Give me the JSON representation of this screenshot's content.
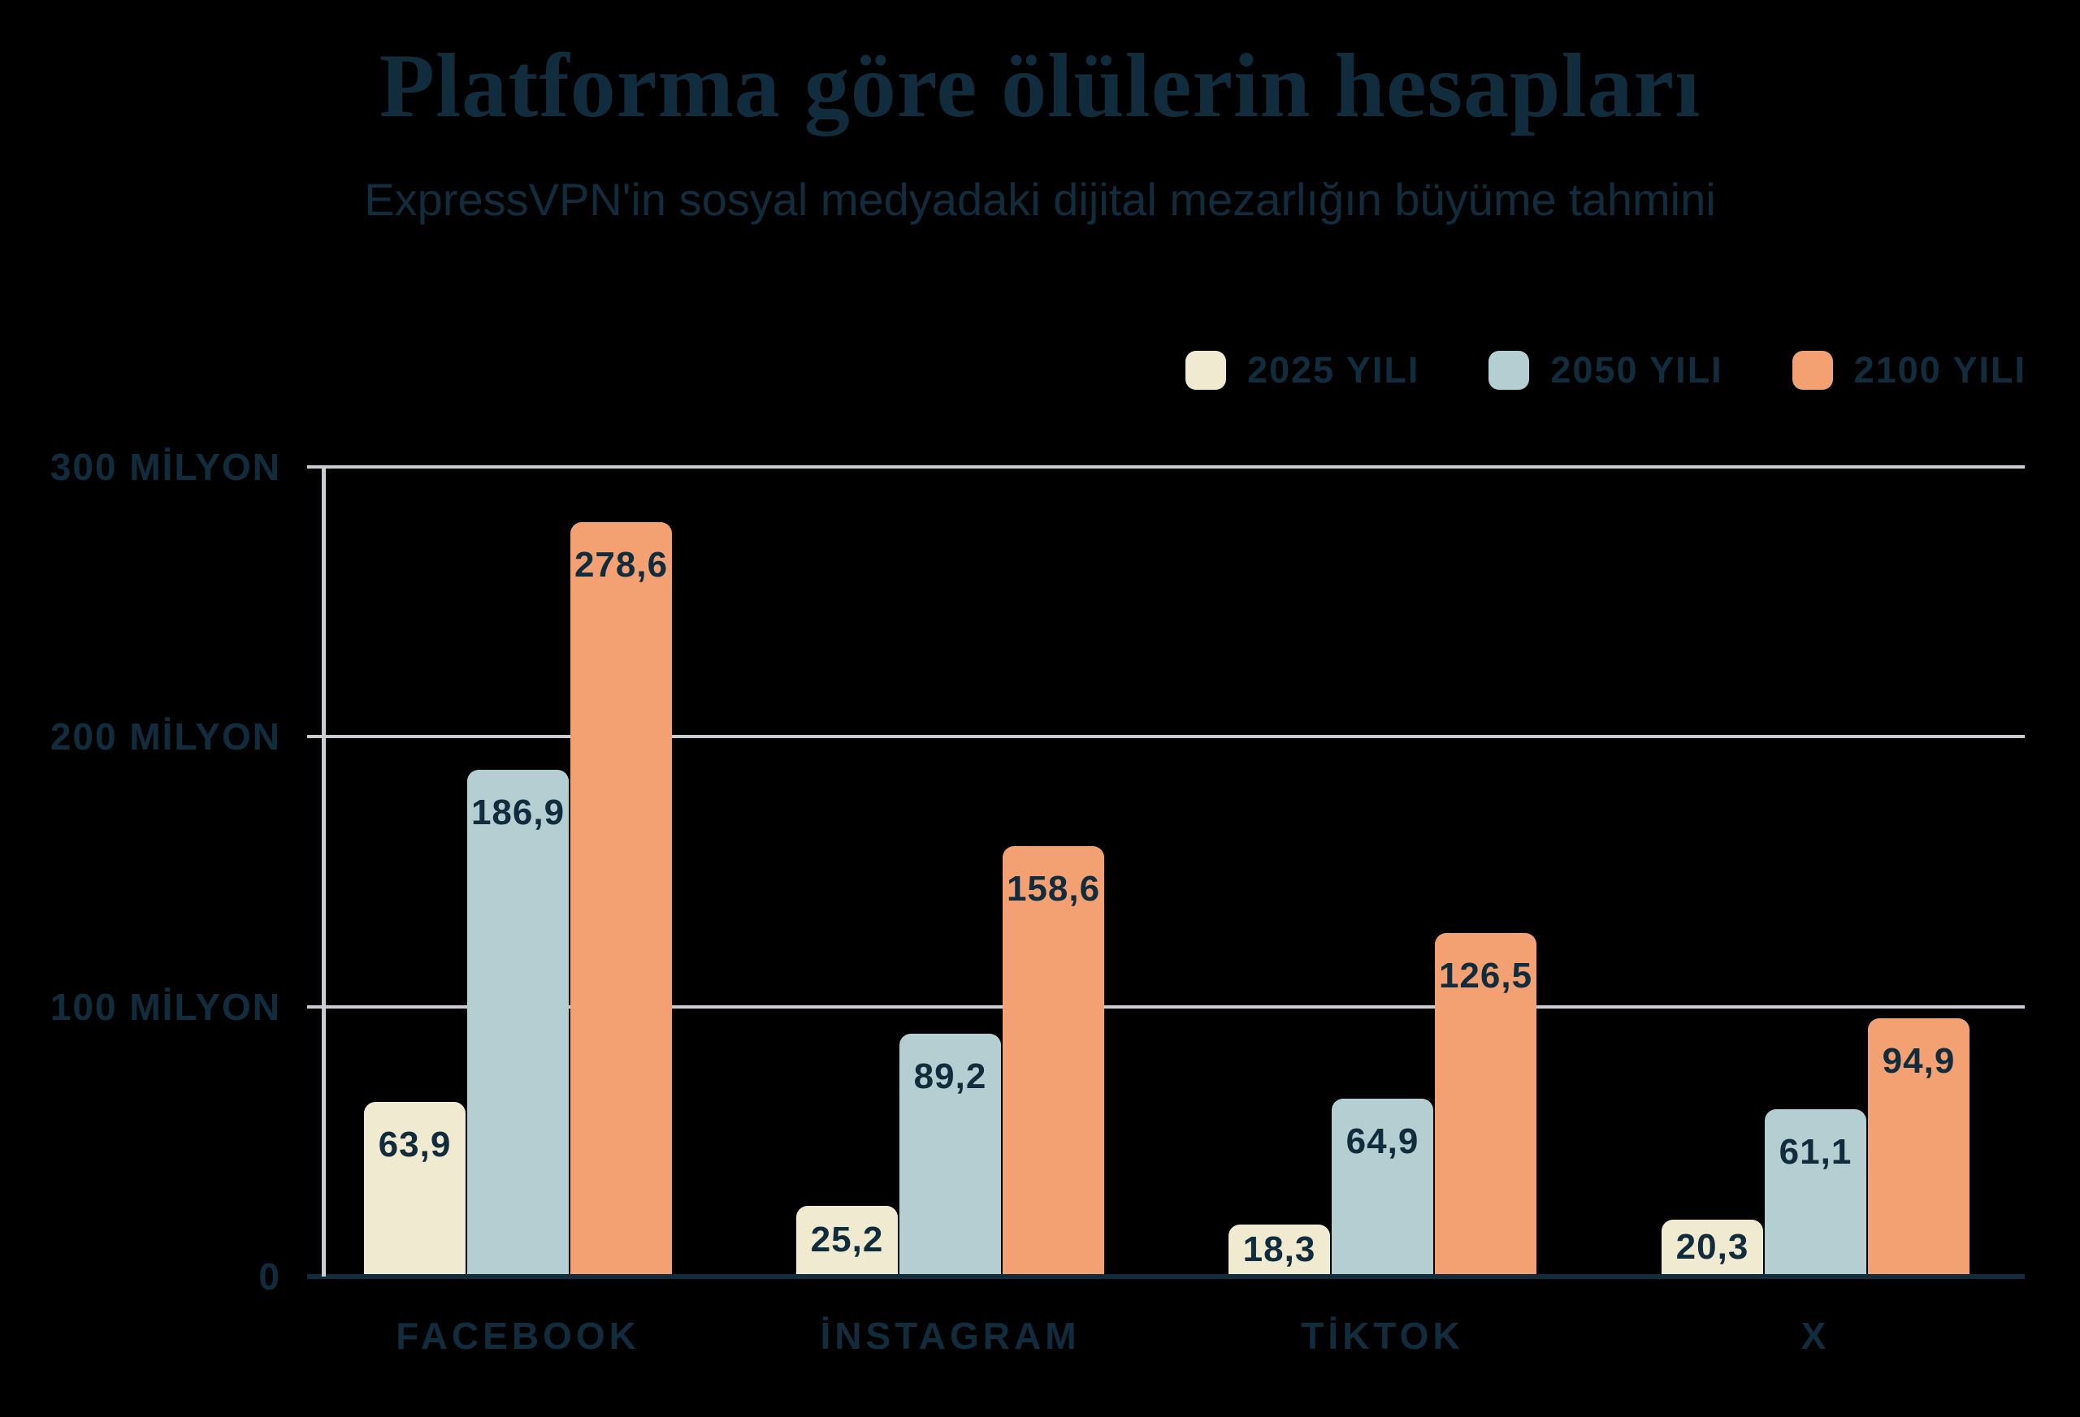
{
  "chart_data": {
    "type": "bar",
    "title": "Platforma göre ölülerin hesapları",
    "subtitle": "ExpressVPN'in sosyal medyadaki dijital mezarlığın büyüme tahmini",
    "categories": [
      "FACEBOOK",
      "İNSTAGRAM",
      "TİKTOK",
      "X"
    ],
    "series": [
      {
        "name": "2025 YILI",
        "color": "#f0ead0",
        "values": [
          63.9,
          25.2,
          18.3,
          20.3
        ],
        "value_labels": [
          "63,9",
          "25,2",
          "18,3",
          "20,3"
        ]
      },
      {
        "name": "2050 YILI",
        "color": "#b4ced1",
        "values": [
          186.9,
          89.2,
          64.9,
          61.1
        ],
        "value_labels": [
          "186,9",
          "89,2",
          "64,9",
          "61,1"
        ]
      },
      {
        "name": "2100 YILI",
        "color": "#f3a173",
        "values": [
          278.6,
          158.6,
          126.5,
          94.9
        ],
        "value_labels": [
          "278,6",
          "158,6",
          "126,5",
          "94,9"
        ]
      }
    ],
    "y_ticks": [
      {
        "value": 0,
        "label": "0"
      },
      {
        "value": 100,
        "label": "100 MİLYON"
      },
      {
        "value": 200,
        "label": "200 MİLYON"
      },
      {
        "value": 300,
        "label": "300 MİLYON"
      }
    ],
    "ylim": [
      0,
      300
    ],
    "unit": "milyon hesap",
    "grid": "horizontal",
    "legend_position": "top-right",
    "colors": {
      "background": "#000000",
      "navy_text": "#112c3d",
      "gridline": "#c9cdd1",
      "baseline": "#112c3d"
    }
  }
}
